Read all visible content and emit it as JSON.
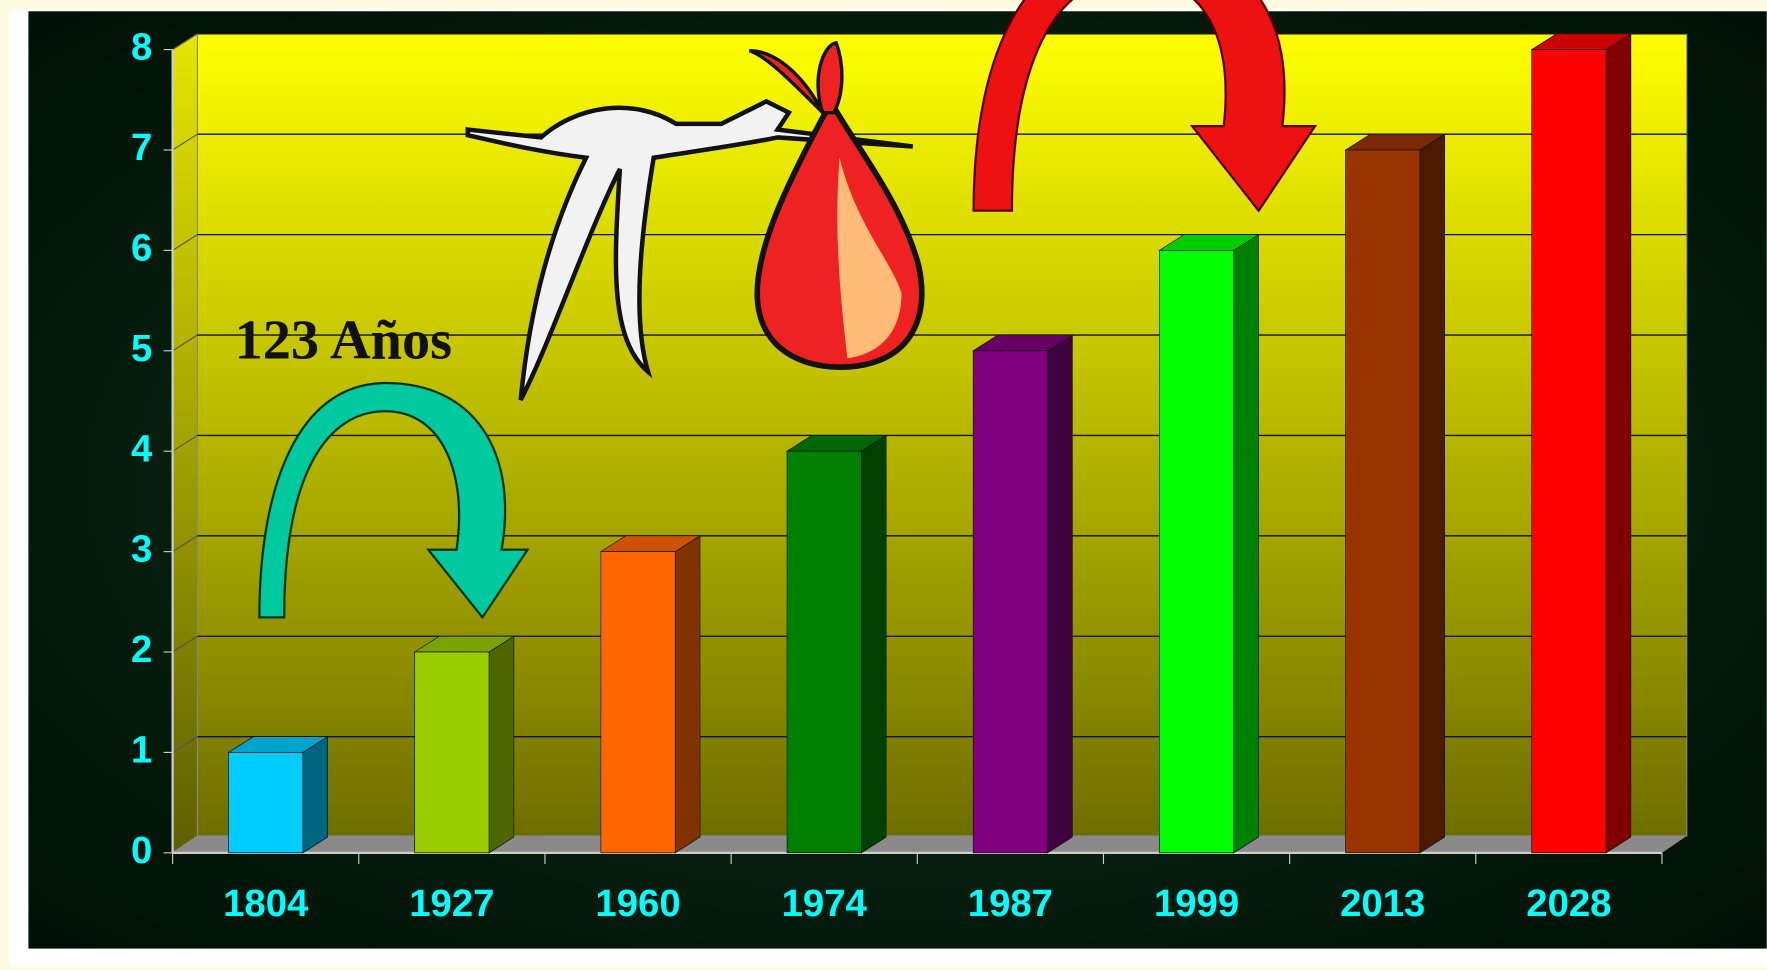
{
  "chart_data": {
    "type": "bar",
    "categories": [
      "1804",
      "1927",
      "1960",
      "1974",
      "1987",
      "1999",
      "2013",
      "2028"
    ],
    "values": [
      1,
      2,
      3,
      4,
      5,
      6,
      7,
      8
    ],
    "colors": [
      "#00ccff",
      "#99cc00",
      "#ff6600",
      "#008000",
      "#800080",
      "#00ff00",
      "#993300",
      "#ff0000"
    ],
    "ylim": [
      0,
      8
    ],
    "yticks": [
      0,
      1,
      2,
      3,
      4,
      5,
      6,
      7,
      8
    ],
    "grid": true,
    "annotation": "123 Años"
  }
}
